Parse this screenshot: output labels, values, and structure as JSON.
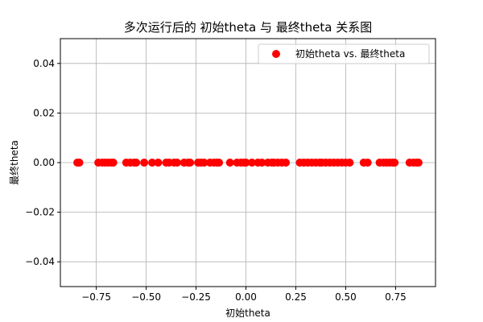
{
  "chart_data": {
    "type": "scatter",
    "title": "多次运行后的 初始theta 与 最终theta 关系图",
    "xlabel": "初始theta",
    "ylabel": "最终theta",
    "xlim": [
      -0.93,
      0.95
    ],
    "ylim": [
      -0.05,
      0.05
    ],
    "x_ticks": [
      -0.75,
      -0.5,
      -0.25,
      0.0,
      0.25,
      0.5,
      0.75
    ],
    "x_tick_labels": [
      "−0.75",
      "−0.50",
      "−0.25",
      "0.00",
      "0.25",
      "0.50",
      "0.75"
    ],
    "y_ticks": [
      -0.04,
      -0.02,
      0.0,
      0.02,
      0.04
    ],
    "y_tick_labels": [
      "−0.04",
      "−0.02",
      "0.00",
      "0.02",
      "0.04"
    ],
    "grid": true,
    "legend_position": "top-right",
    "series": [
      {
        "name": "初始theta vs. 最终theta",
        "color": "#ff0000",
        "x": [
          -0.845,
          -0.835,
          -0.74,
          -0.72,
          -0.705,
          -0.69,
          -0.675,
          -0.665,
          -0.6,
          -0.58,
          -0.56,
          -0.55,
          -0.51,
          -0.47,
          -0.44,
          -0.4,
          -0.385,
          -0.36,
          -0.345,
          -0.31,
          -0.29,
          -0.28,
          -0.24,
          -0.225,
          -0.21,
          -0.18,
          -0.16,
          -0.145,
          -0.135,
          -0.08,
          -0.045,
          -0.025,
          -0.01,
          0.0,
          0.03,
          0.06,
          0.08,
          0.11,
          0.13,
          0.14,
          0.16,
          0.18,
          0.2,
          0.27,
          0.29,
          0.31,
          0.33,
          0.35,
          0.37,
          0.38,
          0.4,
          0.42,
          0.44,
          0.46,
          0.48,
          0.5,
          0.52,
          0.59,
          0.61,
          0.67,
          0.69,
          0.705,
          0.72,
          0.735,
          0.745,
          0.82,
          0.84,
          0.855,
          0.865
        ],
        "y": [
          0.0,
          0.0,
          0.0,
          0.0,
          0.0,
          0.0,
          0.0,
          0.0,
          0.0,
          0.0,
          0.0,
          0.0,
          0.0,
          0.0,
          0.0,
          0.0,
          0.0,
          0.0,
          0.0,
          0.0,
          0.0,
          0.0,
          0.0,
          0.0,
          0.0,
          0.0,
          0.0,
          0.0,
          0.0,
          0.0,
          0.0,
          0.0,
          0.0,
          0.0,
          0.0,
          0.0,
          0.0,
          0.0,
          0.0,
          0.0,
          0.0,
          0.0,
          0.0,
          0.0,
          0.0,
          0.0,
          0.0,
          0.0,
          0.0,
          0.0,
          0.0,
          0.0,
          0.0,
          0.0,
          0.0,
          0.0,
          0.0,
          0.0,
          0.0,
          0.0,
          0.0,
          0.0,
          0.0,
          0.0,
          0.0,
          0.0,
          0.0,
          0.0,
          0.0
        ]
      }
    ]
  }
}
